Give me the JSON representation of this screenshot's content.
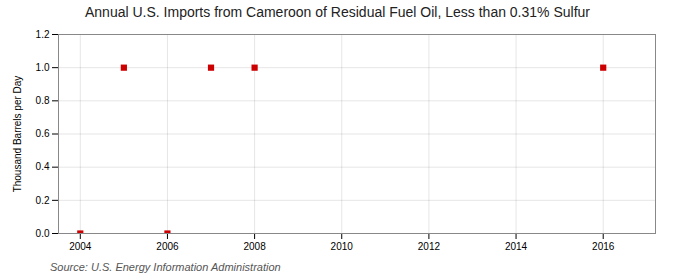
{
  "chart_data": {
    "type": "scatter",
    "title": "Annual U.S. Imports from Cameroon of Residual Fuel Oil, Less than 0.31% Sulfur",
    "ylabel": "Thousand Barrels per Day",
    "source": "Source: U.S. Energy Information Administration",
    "x": [
      2004,
      2005,
      2006,
      2007,
      2008,
      2016
    ],
    "values": [
      0.0,
      1.0,
      0.0,
      1.0,
      1.0,
      1.0
    ],
    "color": "#cc0000",
    "marker": "square",
    "xlim": [
      2003.5,
      2017.2
    ],
    "ylim": [
      0.0,
      1.2
    ],
    "xticks": [
      2004,
      2006,
      2008,
      2010,
      2012,
      2014,
      2016
    ],
    "yticks": [
      {
        "value": 0.0,
        "label": "0.0"
      },
      0.2,
      0.4,
      0.6,
      0.8,
      {
        "value": 1.0,
        "label": "1.0"
      },
      1.2
    ],
    "grid": true
  }
}
